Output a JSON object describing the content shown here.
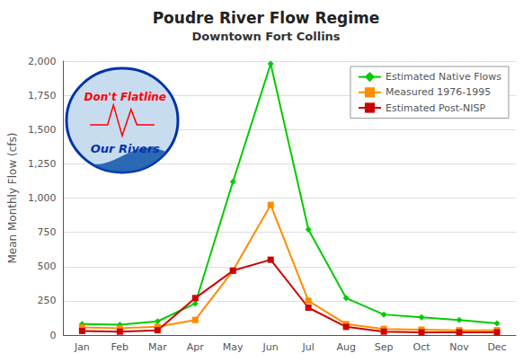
{
  "chart_data": {
    "type": "line",
    "title": "Poudre River Flow Regime",
    "subtitle": "Downtown Fort Collins",
    "ylabel": "Mean Monthly Flow (cfs)",
    "categories": [
      "Jan",
      "Feb",
      "Mar",
      "Apr",
      "May",
      "Jun",
      "Jul",
      "Aug",
      "Sep",
      "Oct",
      "Nov",
      "Dec"
    ],
    "series": [
      {
        "name": "Estimated Native Flows",
        "color": "#00CC00",
        "marker": "diamond",
        "values": [
          80,
          75,
          100,
          230,
          1120,
          1980,
          770,
          270,
          150,
          130,
          110,
          85
        ]
      },
      {
        "name": "Measured 1976-1995",
        "color": "#FF8C00",
        "marker": "square",
        "values": [
          55,
          50,
          60,
          110,
          470,
          950,
          250,
          80,
          45,
          40,
          35,
          35
        ]
      },
      {
        "name": "Estimated Post-NISP",
        "color": "#CC0000",
        "marker": "square",
        "values": [
          30,
          25,
          35,
          270,
          470,
          550,
          200,
          60,
          25,
          20,
          20,
          20
        ]
      }
    ],
    "ylim": [
      0,
      2000
    ],
    "yticks": [
      0,
      250,
      500,
      750,
      1000,
      1250,
      1500,
      1750,
      2000
    ],
    "grid": true,
    "legend": "upper right",
    "annotations": [
      {
        "text": "Don't Flatline",
        "color": "red"
      },
      {
        "text": "Our Rivers",
        "color": "#0033AA"
      }
    ]
  }
}
